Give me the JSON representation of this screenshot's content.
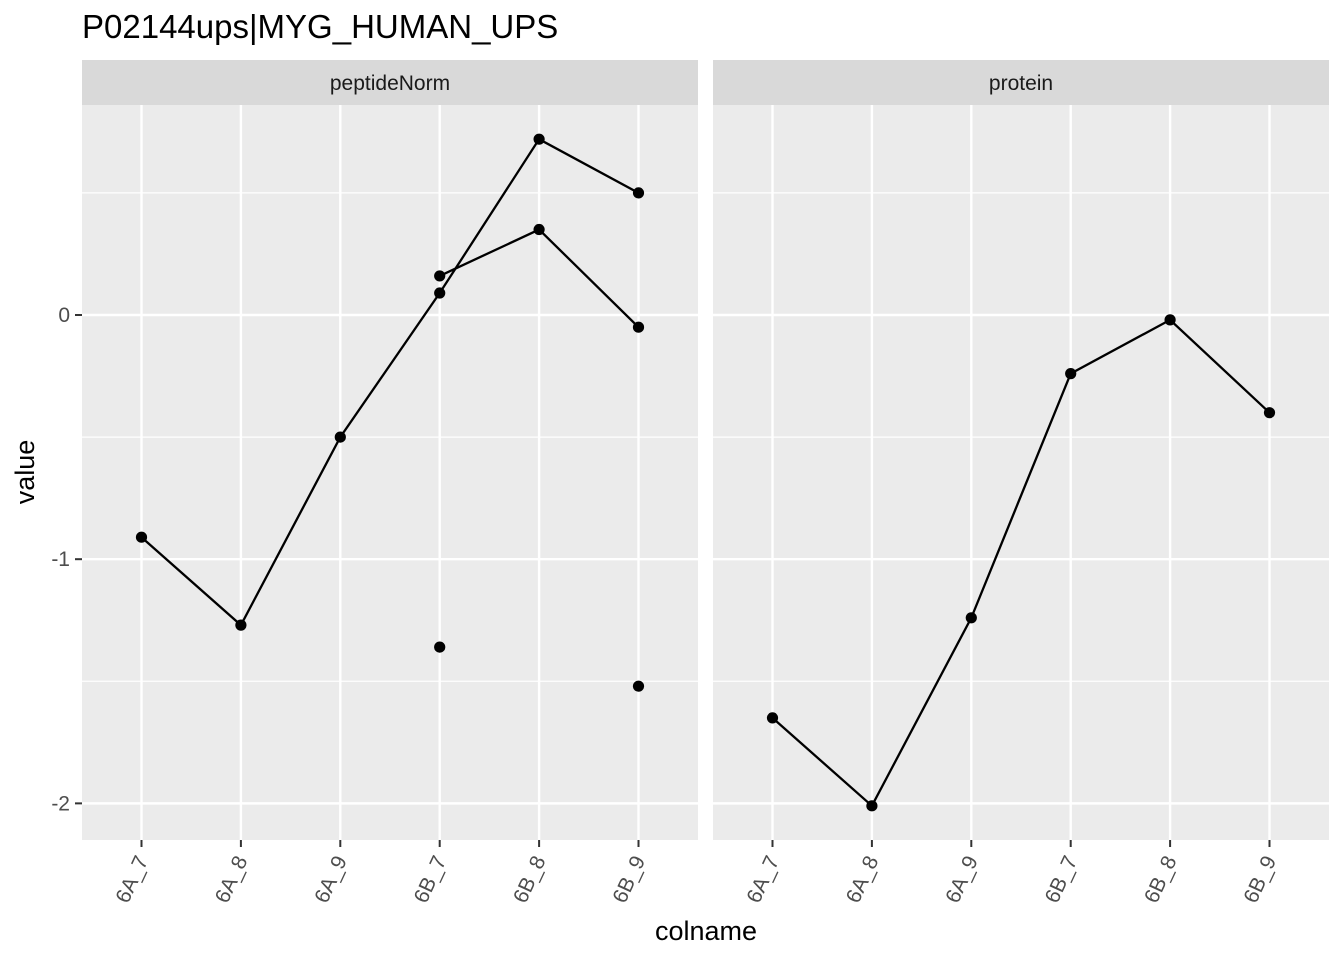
{
  "chart_data": {
    "type": "line",
    "title": "P02144ups|MYG_HUMAN_UPS",
    "xlabel": "colname",
    "ylabel": "value",
    "categories": [
      "6A_7",
      "6A_8",
      "6A_9",
      "6B_7",
      "6B_8",
      "6B_9"
    ],
    "y_ticks": [
      0,
      -1,
      -2
    ],
    "y_tick_labels": [
      "0",
      "-1",
      "-2"
    ],
    "ylim": [
      -2.15,
      0.86
    ],
    "grid": true,
    "colors": {
      "panel_bg": "#ebebeb",
      "strip_bg": "#d9d9d9",
      "grid": "#ffffff",
      "series": "#000000"
    },
    "panels": [
      {
        "name": "peptideNorm",
        "series": [
          {
            "values": [
              -0.91,
              -1.27,
              -0.5,
              0.09,
              0.72,
              0.5
            ]
          },
          {
            "values": [
              null,
              null,
              null,
              0.16,
              0.35,
              -0.05
            ]
          },
          {
            "values": [
              null,
              null,
              null,
              -1.36,
              null,
              -1.52
            ],
            "points_only": true
          }
        ]
      },
      {
        "name": "protein",
        "series": [
          {
            "values": [
              -1.65,
              -2.01,
              -1.24,
              -0.24,
              -0.02,
              -0.4
            ]
          }
        ]
      }
    ]
  }
}
